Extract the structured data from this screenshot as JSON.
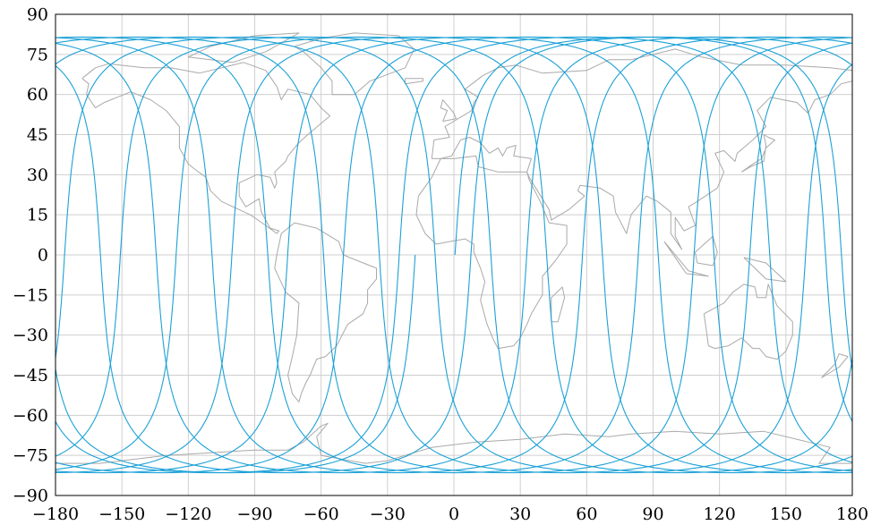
{
  "chart_data": {
    "type": "line",
    "title": "",
    "xlabel": "",
    "ylabel": "",
    "xlim": [
      -180,
      180
    ],
    "ylim": [
      -90,
      90
    ],
    "grid": true,
    "legend": "none",
    "x_ticks": [
      -180,
      -150,
      -120,
      -90,
      -60,
      -30,
      0,
      30,
      60,
      90,
      120,
      150,
      180
    ],
    "y_ticks": [
      90,
      75,
      60,
      45,
      30,
      15,
      0,
      -15,
      -30,
      -45,
      -60,
      -75,
      -90
    ],
    "x_tick_labels": [
      "−180",
      "−150",
      "−120",
      "−90",
      "−60",
      "−30",
      "0",
      "30",
      "60",
      "90",
      "120",
      "150",
      "180"
    ],
    "y_tick_labels": [
      "90",
      "75",
      "60",
      "45",
      "30",
      "15",
      "0",
      "−15",
      "−30",
      "−45",
      "−60",
      "−75",
      "−90"
    ],
    "series": [
      {
        "type": "ground_track",
        "inclination_deg": 81.5,
        "lon_shift_per_rev_deg": -25.2,
        "ascending_node_lon_deg": [
          0.5,
          -24.7,
          -49.9,
          -75.1,
          -100.3,
          -125.5,
          -150.7,
          -175.9,
          158.9,
          133.7,
          108.5,
          83.3,
          58.1,
          32.9,
          7.7
        ],
        "color": "#1ba1d6"
      }
    ],
    "basemap": {
      "type": "world_coastlines",
      "color": "#a9a9a9"
    }
  }
}
